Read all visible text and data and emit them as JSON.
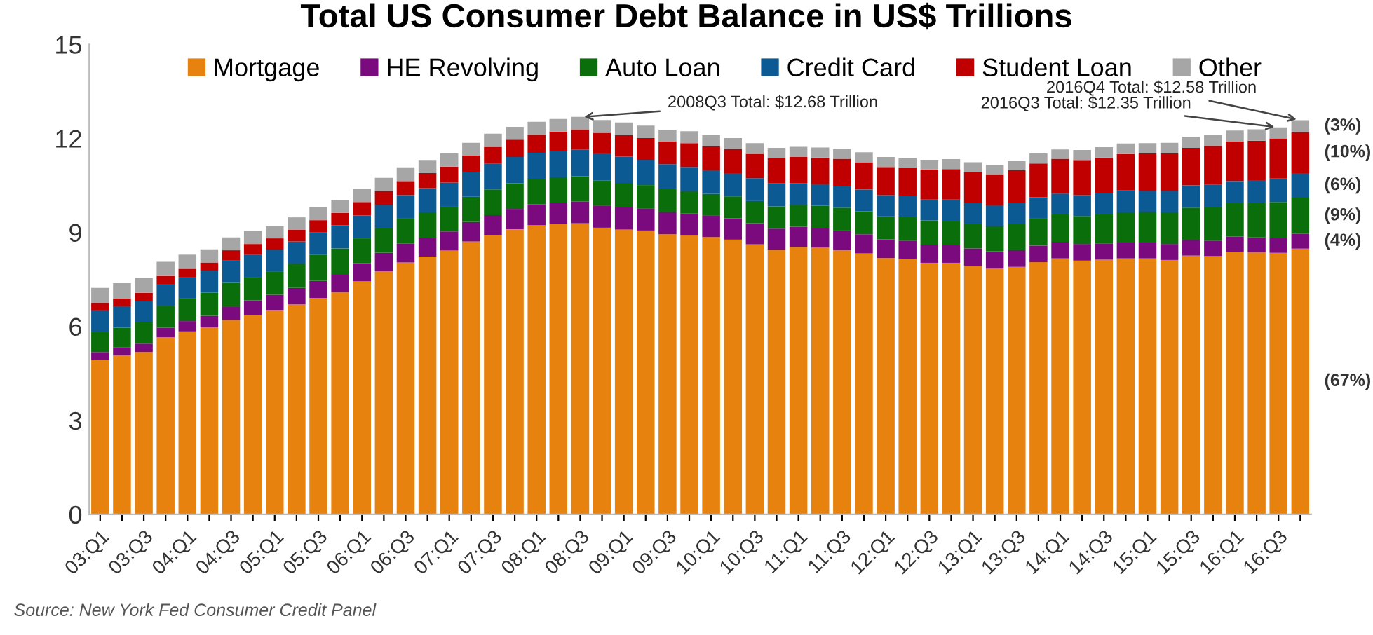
{
  "chart_data": {
    "type": "bar",
    "stacked": true,
    "title": "Total US Consumer Debt Balance in US$ Trillions",
    "categories": [
      "03:Q1",
      null,
      "03:Q3",
      null,
      "04:Q1",
      null,
      "04:Q3",
      null,
      "05:Q1",
      null,
      "05:Q3",
      null,
      "06:Q1",
      null,
      "06:Q3",
      null,
      "07:Q1",
      null,
      "07:Q3",
      null,
      "08:Q1",
      null,
      "08:Q3",
      null,
      "09:Q1",
      null,
      "09:Q3",
      null,
      "10:Q1",
      null,
      "10:Q3",
      null,
      "11:Q1",
      null,
      "11:Q3",
      null,
      "12:Q1",
      null,
      "12:Q3",
      null,
      "13:Q1",
      null,
      "13:Q3",
      null,
      "14:Q1",
      null,
      "14:Q3",
      null,
      "15:Q1",
      null,
      "15:Q3",
      null,
      "16:Q1",
      null,
      "16:Q3",
      null
    ],
    "series": [
      {
        "name": "Mortgage",
        "color": "#e8820e",
        "values": [
          4.94,
          5.08,
          5.18,
          5.66,
          5.84,
          5.97,
          6.21,
          6.36,
          6.51,
          6.7,
          6.91,
          7.1,
          7.44,
          7.76,
          8.04,
          8.23,
          8.42,
          8.71,
          8.92,
          9.1,
          9.23,
          9.27,
          9.29,
          9.15,
          9.09,
          9.06,
          8.94,
          8.9,
          8.85,
          8.77,
          8.62,
          8.45,
          8.54,
          8.52,
          8.44,
          8.33,
          8.18,
          8.15,
          8.03,
          8.03,
          7.93,
          7.84,
          7.9,
          8.05,
          8.17,
          8.1,
          8.13,
          8.17,
          8.17,
          8.12,
          8.26,
          8.25,
          8.37,
          8.36,
          8.35,
          8.48
        ]
      },
      {
        "name": "HE Revolving",
        "color": "#7b0a7f",
        "values": [
          0.24,
          0.26,
          0.27,
          0.3,
          0.33,
          0.37,
          0.43,
          0.47,
          0.5,
          0.53,
          0.54,
          0.57,
          0.58,
          0.59,
          0.6,
          0.6,
          0.61,
          0.62,
          0.63,
          0.65,
          0.66,
          0.68,
          0.69,
          0.71,
          0.71,
          0.71,
          0.71,
          0.7,
          0.68,
          0.68,
          0.67,
          0.67,
          0.64,
          0.62,
          0.62,
          0.61,
          0.6,
          0.59,
          0.58,
          0.56,
          0.56,
          0.55,
          0.54,
          0.53,
          0.53,
          0.53,
          0.52,
          0.51,
          0.51,
          0.51,
          0.5,
          0.49,
          0.49,
          0.48,
          0.48,
          0.47
        ]
      },
      {
        "name": "Auto Loan",
        "color": "#0a6e0a",
        "values": [
          0.64,
          0.62,
          0.68,
          0.7,
          0.72,
          0.74,
          0.75,
          0.73,
          0.73,
          0.77,
          0.83,
          0.82,
          0.79,
          0.79,
          0.8,
          0.81,
          0.79,
          0.81,
          0.82,
          0.82,
          0.81,
          0.81,
          0.81,
          0.79,
          0.78,
          0.74,
          0.74,
          0.72,
          0.7,
          0.7,
          0.71,
          0.71,
          0.7,
          0.71,
          0.73,
          0.73,
          0.73,
          0.75,
          0.77,
          0.78,
          0.79,
          0.81,
          0.84,
          0.86,
          0.88,
          0.89,
          0.93,
          0.96,
          0.97,
          1.01,
          1.03,
          1.06,
          1.07,
          1.1,
          1.14,
          1.16
        ]
      },
      {
        "name": "Credit Card",
        "color": "#0b5a94",
        "values": [
          0.69,
          0.69,
          0.69,
          0.7,
          0.69,
          0.7,
          0.71,
          0.72,
          0.71,
          0.71,
          0.73,
          0.74,
          0.73,
          0.74,
          0.75,
          0.77,
          0.77,
          0.8,
          0.82,
          0.84,
          0.84,
          0.85,
          0.86,
          0.87,
          0.84,
          0.81,
          0.79,
          0.77,
          0.76,
          0.74,
          0.73,
          0.73,
          0.69,
          0.69,
          0.69,
          0.7,
          0.68,
          0.67,
          0.67,
          0.68,
          0.66,
          0.67,
          0.67,
          0.68,
          0.66,
          0.67,
          0.68,
          0.7,
          0.68,
          0.69,
          0.71,
          0.73,
          0.71,
          0.73,
          0.75,
          0.78
        ]
      },
      {
        "name": "Student Loan",
        "color": "#c00000",
        "values": [
          0.24,
          0.24,
          0.25,
          0.25,
          0.26,
          0.26,
          0.33,
          0.35,
          0.36,
          0.37,
          0.38,
          0.39,
          0.43,
          0.44,
          0.45,
          0.48,
          0.51,
          0.51,
          0.54,
          0.55,
          0.58,
          0.61,
          0.64,
          0.66,
          0.68,
          0.69,
          0.72,
          0.76,
          0.76,
          0.77,
          0.78,
          0.81,
          0.84,
          0.85,
          0.87,
          0.87,
          0.9,
          0.91,
          0.96,
          0.97,
          0.99,
          0.99,
          1.03,
          1.08,
          1.11,
          1.12,
          1.13,
          1.16,
          1.19,
          1.19,
          1.2,
          1.23,
          1.26,
          1.26,
          1.28,
          1.31
        ]
      },
      {
        "name": "Other",
        "color": "#a6a6a6",
        "values": [
          0.48,
          0.49,
          0.48,
          0.45,
          0.45,
          0.42,
          0.41,
          0.42,
          0.39,
          0.4,
          0.41,
          0.42,
          0.42,
          0.42,
          0.44,
          0.42,
          0.42,
          0.41,
          0.42,
          0.41,
          0.41,
          0.4,
          0.4,
          0.41,
          0.41,
          0.4,
          0.38,
          0.38,
          0.36,
          0.35,
          0.34,
          0.33,
          0.32,
          0.32,
          0.31,
          0.32,
          0.32,
          0.31,
          0.31,
          0.32,
          0.31,
          0.3,
          0.3,
          0.32,
          0.3,
          0.32,
          0.33,
          0.34,
          0.33,
          0.34,
          0.35,
          0.36,
          0.35,
          0.36,
          0.35,
          0.38
        ]
      }
    ],
    "ylim": [
      0,
      15
    ],
    "yticks": [
      0,
      3,
      6,
      9,
      12,
      15
    ],
    "grid": false,
    "legend": "top",
    "annotations": [
      {
        "text": "2008Q3 Total: $12.68 Trillion",
        "x": "08:Q3",
        "y": 12.68
      },
      "2016Q4 Total: $12.58 Trillion",
      {
        "text": "2016Q3 Total: $12.35 Trillion",
        "x": "16:Q3",
        "y": 12.35
      },
      "(3%)",
      "(10%)",
      "(6%)",
      "(9%)",
      "(4%)",
      "(67%)",
      "Source: New York Fed Consumer Credit Panel"
    ]
  }
}
